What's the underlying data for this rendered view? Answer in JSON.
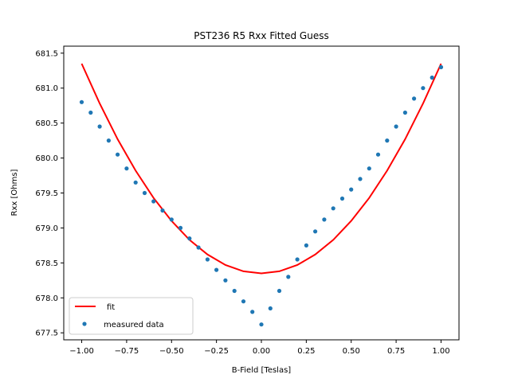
{
  "chart_data": {
    "type": "scatter",
    "title": "PST236 R5 Rxx Fitted Guess",
    "xlabel": "B-Field [Teslas]",
    "ylabel": "Rxx [Ohms]",
    "xlim": [
      -1.1,
      1.1
    ],
    "ylim": [
      677.4,
      681.6
    ],
    "x_ticks": [
      -1.0,
      -0.75,
      -0.5,
      -0.25,
      0.0,
      0.25,
      0.5,
      0.75,
      1.0
    ],
    "x_tick_labels": [
      "−1.00",
      "−0.75",
      "−0.50",
      "−0.25",
      "0.00",
      "0.25",
      "0.50",
      "0.75",
      "1.00"
    ],
    "y_ticks": [
      677.5,
      678.0,
      678.5,
      679.0,
      679.5,
      680.0,
      680.5,
      681.0,
      681.5
    ],
    "y_tick_labels": [
      "677.5",
      "678.0",
      "678.5",
      "679.0",
      "679.5",
      "680.0",
      "680.5",
      "681.0",
      "681.5"
    ],
    "grid": false,
    "legend_position": "lower-left",
    "series": [
      {
        "name": "fit",
        "kind": "line",
        "color": "#ff0000",
        "x": [
          -1.0,
          -0.9,
          -0.8,
          -0.7,
          -0.6,
          -0.5,
          -0.4,
          -0.3,
          -0.2,
          -0.1,
          0.0,
          0.1,
          0.2,
          0.3,
          0.4,
          0.5,
          0.6,
          0.7,
          0.8,
          0.9,
          1.0
        ],
        "y": [
          681.35,
          680.78,
          680.27,
          679.82,
          679.43,
          679.1,
          678.83,
          678.62,
          678.47,
          678.38,
          678.35,
          678.38,
          678.47,
          678.62,
          678.83,
          679.1,
          679.43,
          679.82,
          680.27,
          680.78,
          681.35
        ]
      },
      {
        "name": "measured data",
        "kind": "scatter",
        "color": "#1f77b4",
        "x": [
          -1.0,
          -0.95,
          -0.9,
          -0.85,
          -0.8,
          -0.75,
          -0.7,
          -0.65,
          -0.6,
          -0.55,
          -0.5,
          -0.45,
          -0.4,
          -0.35,
          -0.3,
          -0.25,
          -0.2,
          -0.15,
          -0.1,
          -0.05,
          0.0,
          0.05,
          0.1,
          0.15,
          0.2,
          0.25,
          0.3,
          0.35,
          0.4,
          0.45,
          0.5,
          0.55,
          0.6,
          0.65,
          0.7,
          0.75,
          0.8,
          0.85,
          0.9,
          0.95,
          1.0
        ],
        "y": [
          680.8,
          680.65,
          680.45,
          680.25,
          680.05,
          679.85,
          679.65,
          679.5,
          679.38,
          679.25,
          679.12,
          679.0,
          678.85,
          678.72,
          678.55,
          678.4,
          678.25,
          678.1,
          677.95,
          677.8,
          677.62,
          677.85,
          678.1,
          678.3,
          678.55,
          678.75,
          678.95,
          679.12,
          679.28,
          679.42,
          679.55,
          679.7,
          679.85,
          680.05,
          680.25,
          680.45,
          680.65,
          680.85,
          681.0,
          681.15,
          681.3
        ]
      }
    ]
  }
}
